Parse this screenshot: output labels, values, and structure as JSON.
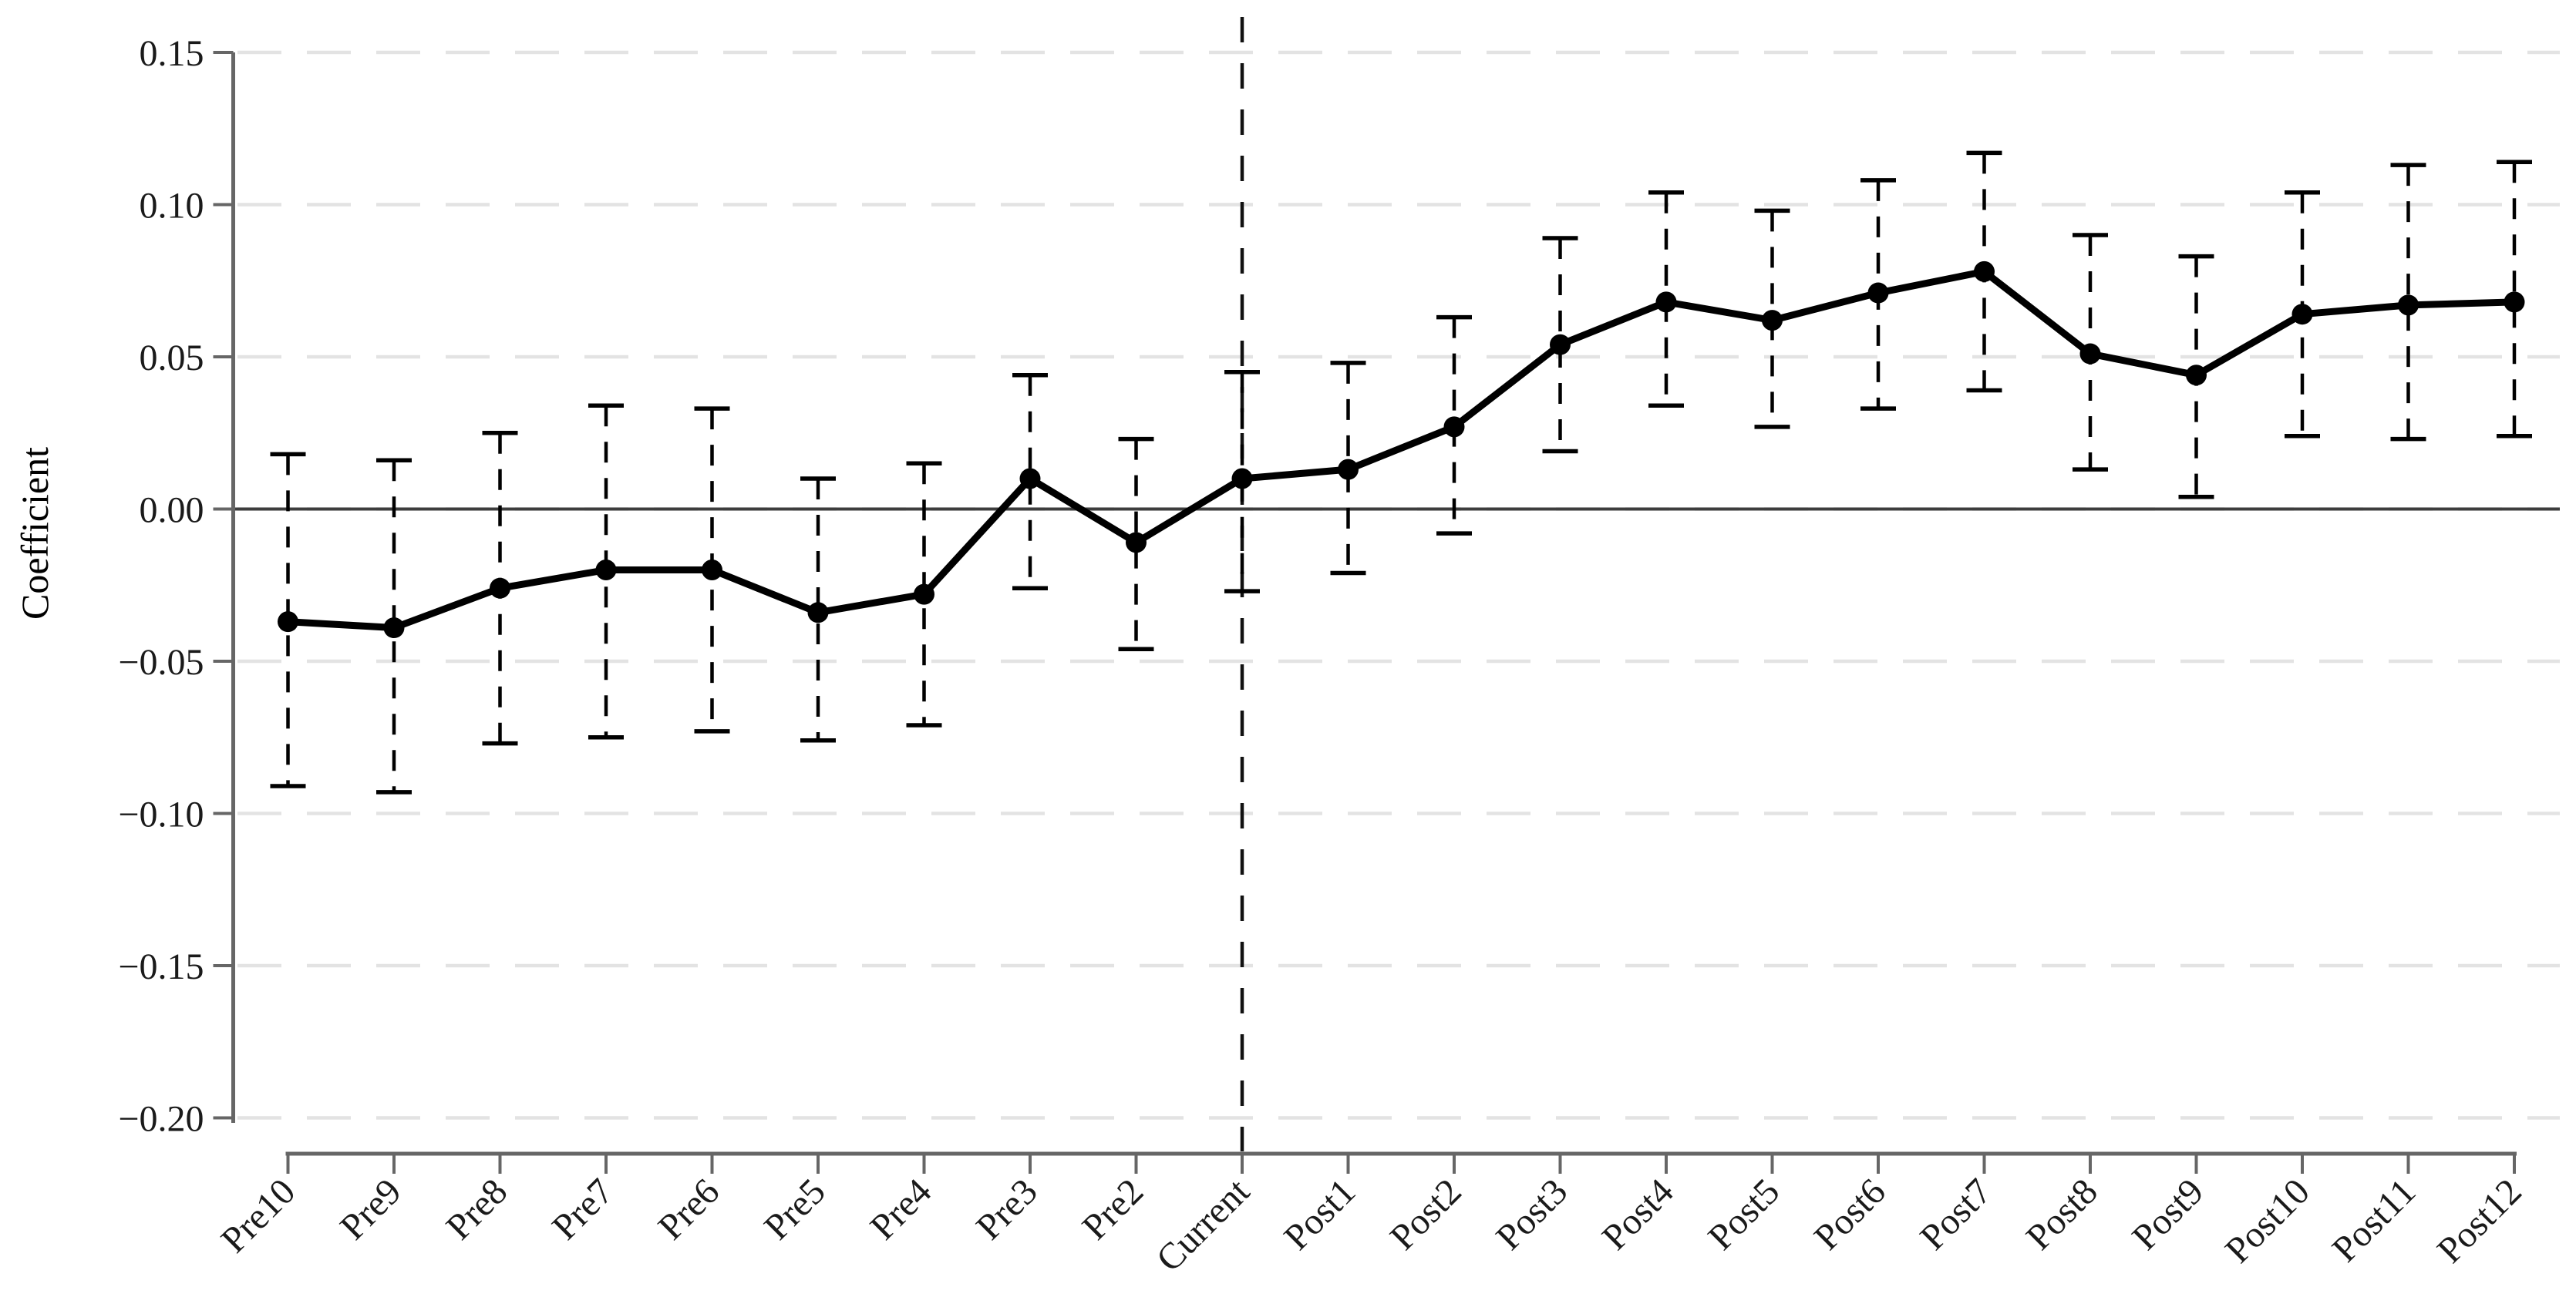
{
  "figure": {
    "kind": "event-study coefficient plot",
    "background_color": "#ffffff"
  },
  "chart_data": {
    "type": "line",
    "title": "",
    "xlabel": "",
    "ylabel": "Coefficient",
    "legend": "none",
    "grid": "horizontal dashed gridlines at every y tick",
    "ylim": [
      -0.2,
      0.15
    ],
    "categories": [
      "Pre10",
      "Pre9",
      "Pre8",
      "Pre7",
      "Pre6",
      "Pre5",
      "Pre4",
      "Pre3",
      "Pre2",
      "Current",
      "Post1",
      "Post2",
      "Post3",
      "Post4",
      "Post5",
      "Post6",
      "Post7",
      "Post8",
      "Post9",
      "Post10",
      "Post11",
      "Post12"
    ],
    "series": [
      {
        "name": "Coefficient",
        "values": [
          -0.037,
          -0.039,
          -0.026,
          -0.02,
          -0.02,
          -0.034,
          -0.028,
          0.01,
          -0.011,
          0.01,
          0.013,
          0.027,
          0.054,
          0.068,
          0.062,
          0.071,
          0.078,
          0.051,
          0.044,
          0.064,
          0.067,
          0.068
        ]
      }
    ],
    "ci_upper": [
      0.018,
      0.016,
      0.025,
      0.034,
      0.033,
      0.01,
      0.015,
      0.044,
      0.023,
      0.045,
      0.048,
      0.063,
      0.089,
      0.104,
      0.098,
      0.108,
      0.117,
      0.09,
      0.083,
      0.104,
      0.113,
      0.114
    ],
    "ci_lower": [
      -0.091,
      -0.093,
      -0.077,
      -0.075,
      -0.073,
      -0.076,
      -0.071,
      -0.026,
      -0.046,
      -0.027,
      -0.021,
      -0.008,
      0.019,
      0.034,
      0.027,
      0.033,
      0.039,
      0.013,
      0.004,
      0.024,
      0.023,
      0.024
    ],
    "y_ticks": [
      {
        "label": "0.15",
        "value": 0.15
      },
      {
        "label": "0.10",
        "value": 0.1
      },
      {
        "label": "0.05",
        "value": 0.05
      },
      {
        "label": "0.00",
        "value": 0.0
      },
      {
        "label": "−0.05",
        "value": -0.05
      },
      {
        "label": "−0.10",
        "value": -0.1
      },
      {
        "label": "−0.15",
        "value": -0.15
      },
      {
        "label": "−0.20",
        "value": -0.2
      }
    ],
    "reference_lines": {
      "zero_line_value": 0,
      "event_line_category": "Current",
      "event_line_style": "vertical dashed"
    },
    "styles": {
      "line_color": "#000000",
      "marker_color": "#000000",
      "ci_color": "#000000",
      "event_line_color": "#111111",
      "zero_line_color": "#3d3d3d",
      "axis_color": "#666666",
      "grid_color": "#e3e3e3",
      "text_color": "#1a1a1a"
    }
  }
}
